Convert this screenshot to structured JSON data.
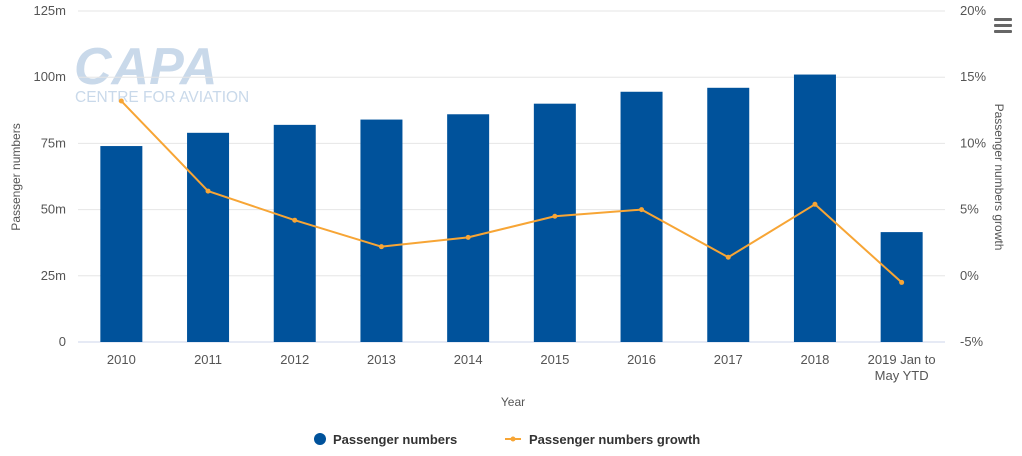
{
  "chart_data": {
    "type": "bar+line",
    "categories": [
      "2010",
      "2011",
      "2012",
      "2013",
      "2014",
      "2015",
      "2016",
      "2017",
      "2018",
      "2019 Jan to May YTD"
    ],
    "category_lines": [
      [
        "2010"
      ],
      [
        "2011"
      ],
      [
        "2012"
      ],
      [
        "2013"
      ],
      [
        "2014"
      ],
      [
        "2015"
      ],
      [
        "2016"
      ],
      [
        "2017"
      ],
      [
        "2018"
      ],
      [
        "2019 Jan to",
        "May YTD"
      ]
    ],
    "series": [
      {
        "name": "Passenger numbers",
        "type": "bar",
        "axis": "left",
        "color": "#00529b",
        "values": [
          74,
          79,
          82,
          84,
          86,
          90,
          94.5,
          96,
          101,
          41.5
        ]
      },
      {
        "name": "Passenger numbers growth",
        "type": "line",
        "axis": "right",
        "color": "#f7a535",
        "values": [
          13.2,
          6.4,
          4.2,
          2.2,
          2.9,
          4.5,
          5.0,
          1.4,
          5.4,
          -0.5
        ]
      }
    ],
    "xlabel": "Year",
    "ylabel_left": "Passenger numbers",
    "ylabel_right": "Passenger numbers growth",
    "yleft": {
      "min": 0,
      "max": 125,
      "ticks": [
        0,
        25,
        50,
        75,
        100,
        125
      ],
      "tick_labels": [
        "0",
        "25m",
        "50m",
        "75m",
        "100m",
        "125m"
      ]
    },
    "yright": {
      "min": -5,
      "max": 20,
      "ticks": [
        -5,
        0,
        5,
        10,
        15,
        20
      ],
      "tick_labels": [
        "-5%",
        "0%",
        "5%",
        "10%",
        "15%",
        "20%"
      ]
    },
    "grid": true,
    "legend_position": "bottom-center"
  },
  "watermark": {
    "brand": "CAPA",
    "tagline": "CENTRE FOR AVIATION"
  },
  "menu": {
    "icon": "hamburger-icon"
  }
}
